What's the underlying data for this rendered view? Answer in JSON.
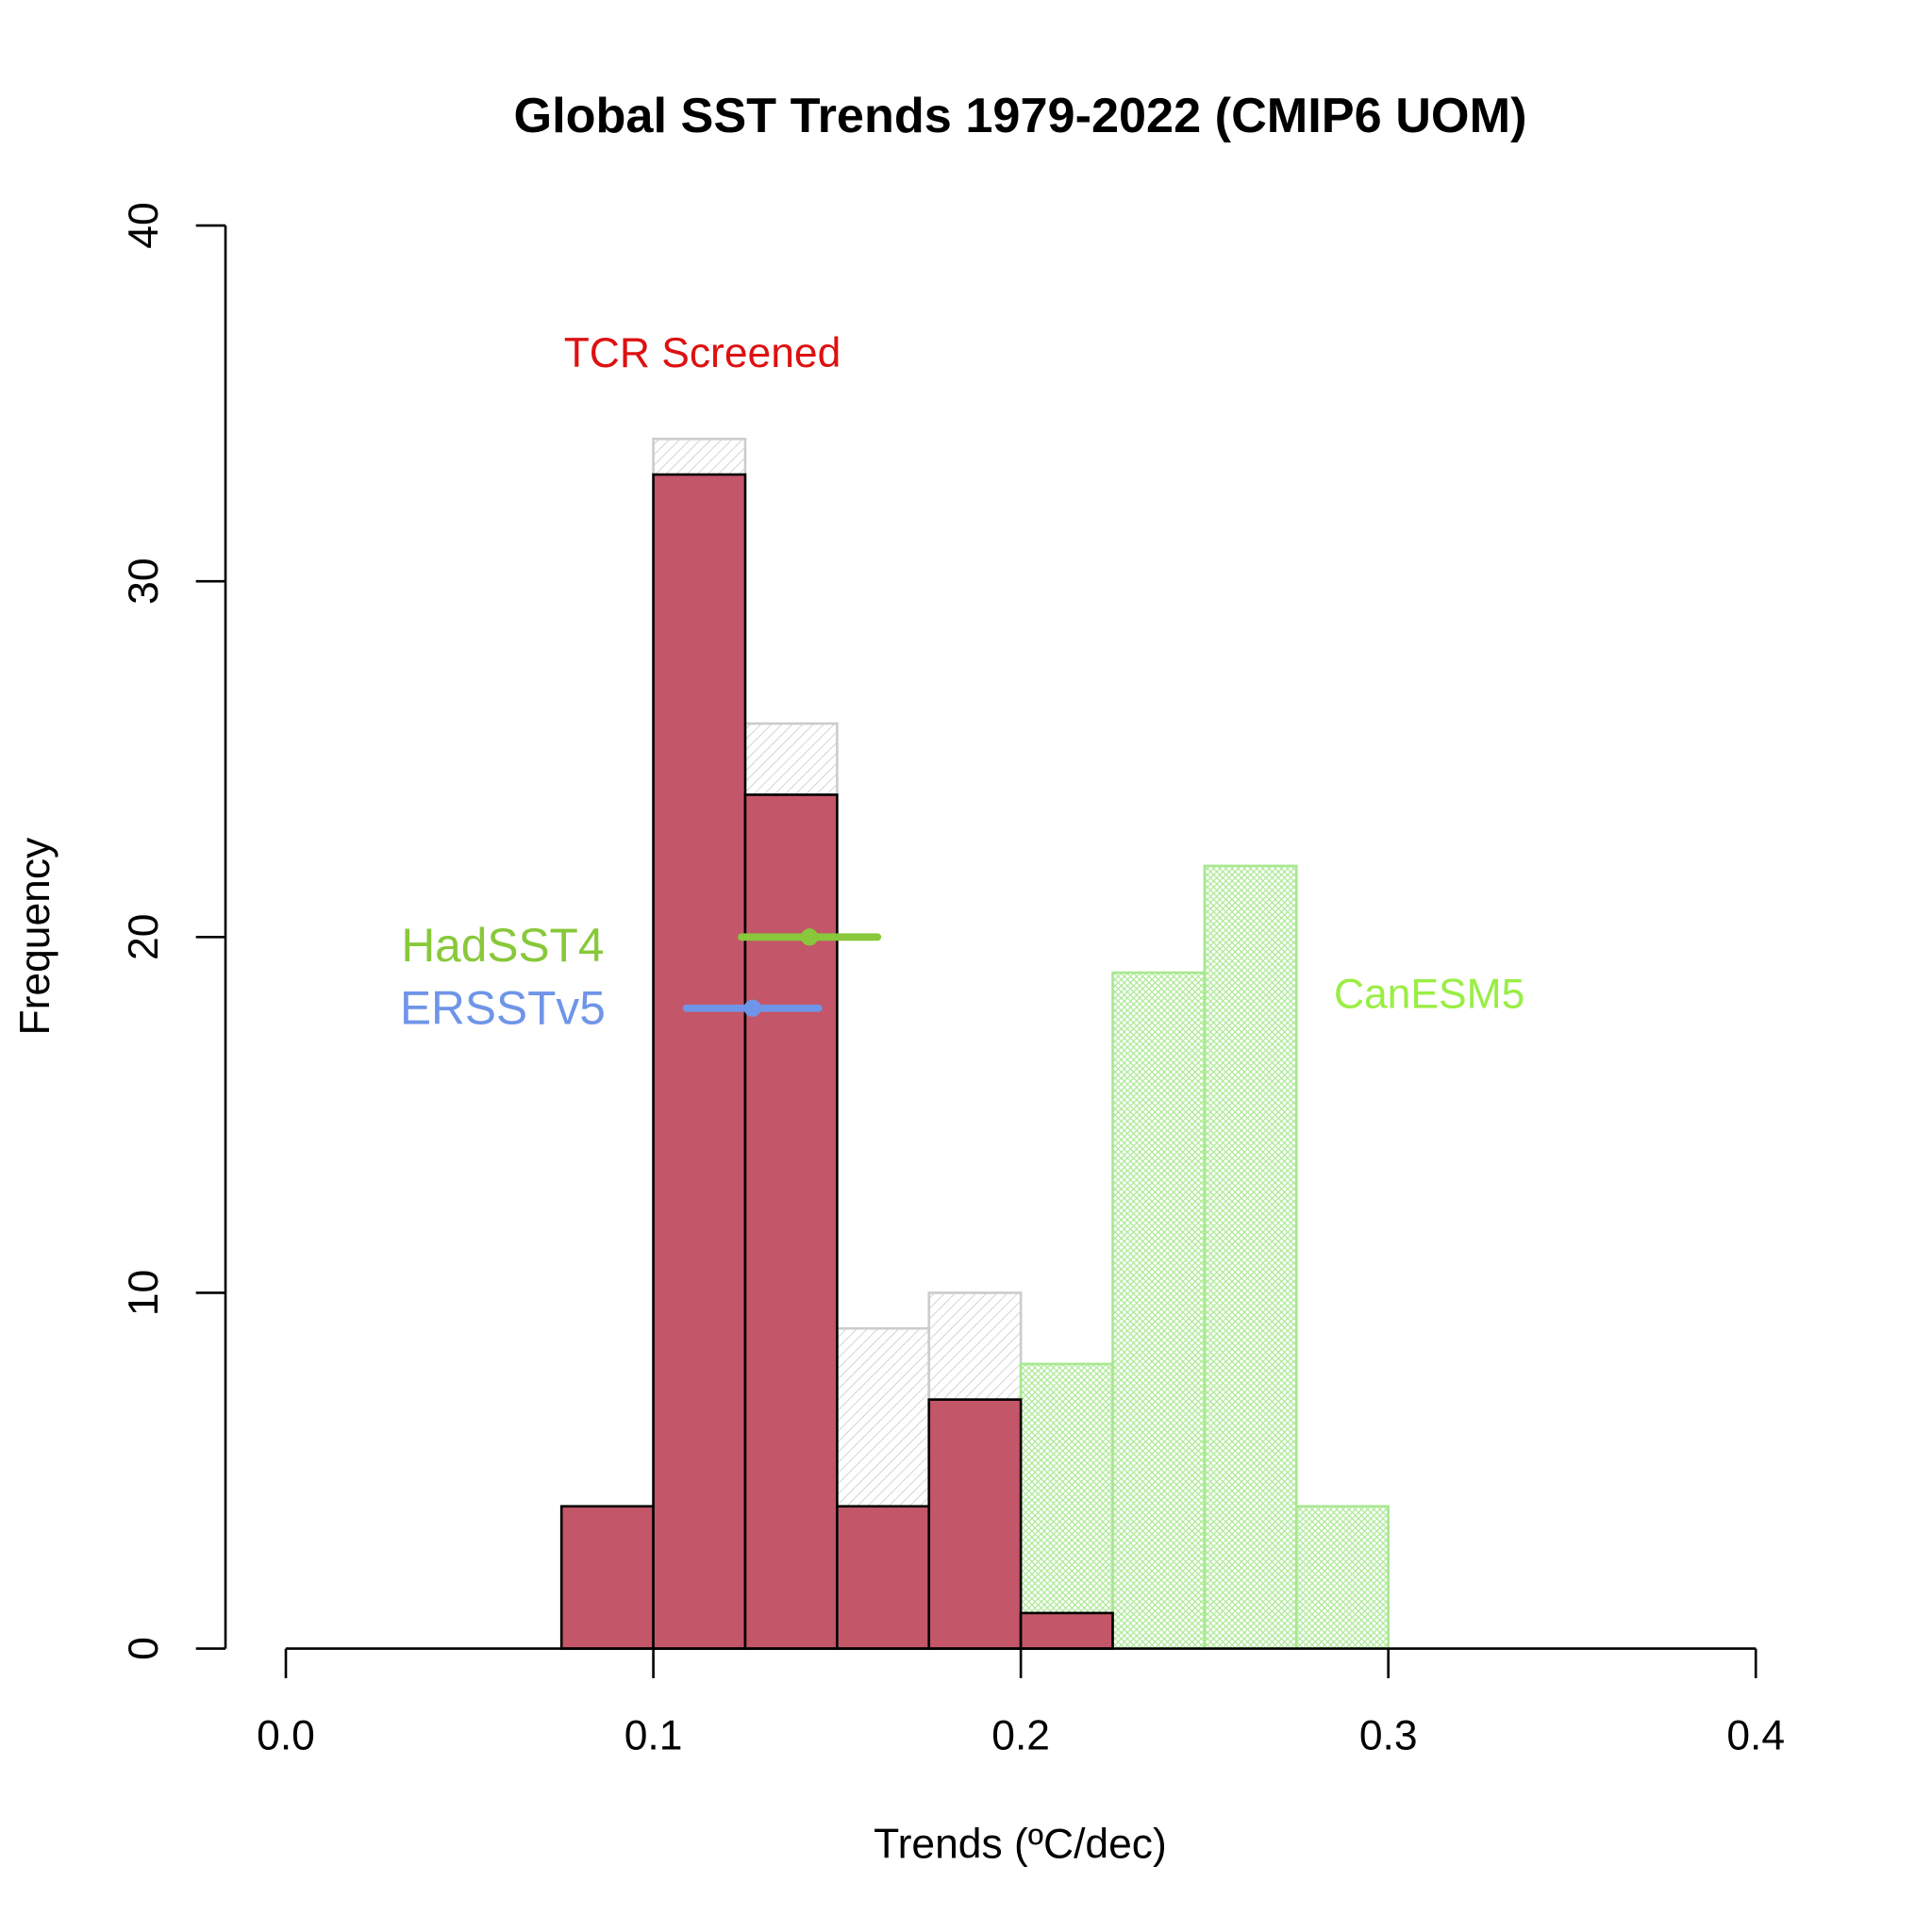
{
  "chart_data": {
    "type": "bar",
    "title": "Global SST Trends 1979-2022 (CMIP6 UOM)",
    "xlabel": "Trends (ºC/dec)",
    "ylabel": "Frequency",
    "xlim": [
      0,
      0.4
    ],
    "ylim": [
      0,
      40
    ],
    "xticks": [
      "0.0",
      "0.1",
      "0.2",
      "0.3",
      "0.4"
    ],
    "yticks": [
      "0",
      "10",
      "20",
      "30",
      "40"
    ],
    "grid": false,
    "bin_width": 0.025,
    "series": [
      {
        "name": "",
        "style": "gray-hatched",
        "color": "#cccccc",
        "bins": [
          [
            0.1,
            34
          ],
          [
            0.125,
            26
          ],
          [
            0.15,
            9
          ],
          [
            0.175,
            10
          ]
        ]
      },
      {
        "name": "CanESM5",
        "style": "green-crosshatch",
        "color": "#a8e890",
        "bins": [
          [
            0.2,
            8
          ],
          [
            0.225,
            19
          ],
          [
            0.25,
            22
          ],
          [
            0.275,
            4
          ]
        ]
      },
      {
        "name": "TCR Screened",
        "style": "solid",
        "color": "#c35668",
        "bins": [
          [
            0.075,
            4
          ],
          [
            0.1,
            33
          ],
          [
            0.125,
            24
          ],
          [
            0.15,
            4
          ],
          [
            0.175,
            7
          ],
          [
            0.2,
            1
          ]
        ]
      }
    ],
    "observations": [
      {
        "name": "HadSST4",
        "color": "#88c83a",
        "value": 0.1425,
        "low": 0.124,
        "high": 0.161,
        "y": 20
      },
      {
        "name": "ERSSTv5",
        "color": "#6f95e8",
        "value": 0.127,
        "low": 0.109,
        "high": 0.145,
        "y": 18
      }
    ],
    "annotations": [
      {
        "text": "TCR Screened",
        "color": "#dd1111"
      },
      {
        "text": "CanESM5",
        "color": "#99ee44"
      }
    ]
  }
}
